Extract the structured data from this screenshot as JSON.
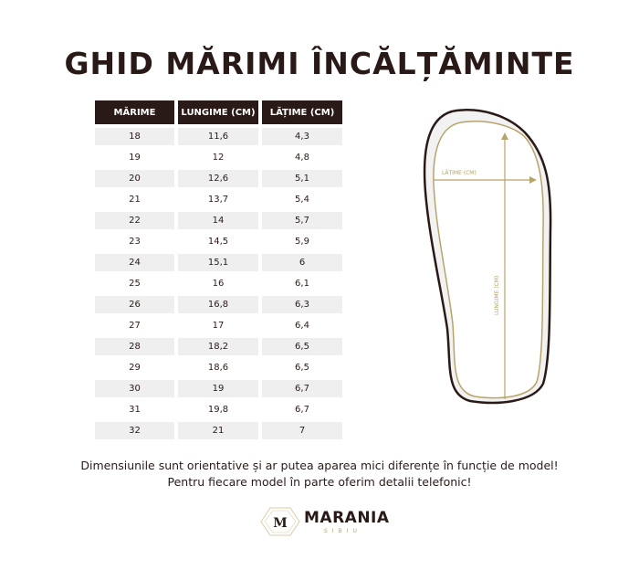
{
  "title": "GHID MĂRIMI ÎNCĂLȚĂMINTE",
  "table": {
    "headers": [
      "MĂRIME",
      "LUNGIME (CM)",
      "LĂȚIME (CM)"
    ],
    "rows": [
      [
        "18",
        "11,6",
        "4,3"
      ],
      [
        "19",
        "12",
        "4,8"
      ],
      [
        "20",
        "12,6",
        "5,1"
      ],
      [
        "21",
        "13,7",
        "5,4"
      ],
      [
        "22",
        "14",
        "5,7"
      ],
      [
        "23",
        "14,5",
        "5,9"
      ],
      [
        "24",
        "15,1",
        "6"
      ],
      [
        "25",
        "16",
        "6,1"
      ],
      [
        "26",
        "16,8",
        "6,3"
      ],
      [
        "27",
        "17",
        "6,4"
      ],
      [
        "28",
        "18,2",
        "6,5"
      ],
      [
        "29",
        "18,6",
        "6,5"
      ],
      [
        "30",
        "19",
        "6,7"
      ],
      [
        "31",
        "19,8",
        "6,7"
      ],
      [
        "32",
        "21",
        "7"
      ]
    ]
  },
  "diagram": {
    "width_label": "LĂȚIME (CM)",
    "length_label": "LUNGIME (CM)"
  },
  "notes": [
    "Dimensiunile sunt orientative și ar putea aparea mici diferențe în funcție de model!",
    "Pentru fiecare model în parte oferim detalii telefonic!"
  ],
  "logo": {
    "name": "MARANIA",
    "sub": "SIBIU",
    "monogram": "M"
  },
  "colors": {
    "dark": "#2a1a17",
    "gold": "#b8a36a",
    "shade": "#efefef"
  }
}
